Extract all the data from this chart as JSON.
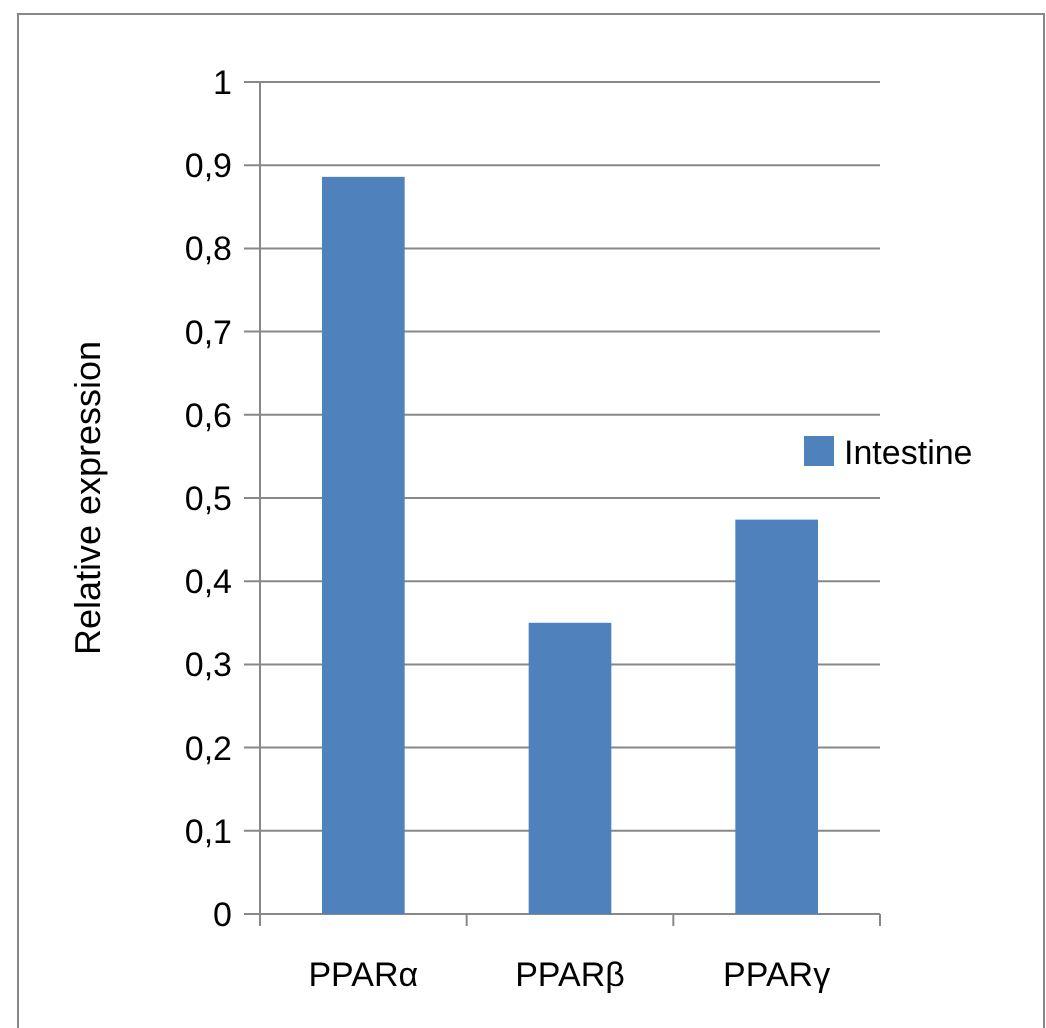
{
  "chart_data": {
    "type": "bar",
    "ylabel": "Relative expression",
    "categories": [
      "PPARα",
      "PPARβ",
      "PPARγ"
    ],
    "series": [
      {
        "name": "Intestine",
        "color": "#4f81bd",
        "values": [
          0.886,
          0.35,
          0.474
        ]
      }
    ],
    "ylim": [
      0,
      1
    ],
    "yticks": [
      0,
      {
        "value": 0.1,
        "label": "0,1"
      },
      {
        "value": 0.2,
        "label": "0,2"
      },
      {
        "value": 0.3,
        "label": "0,3"
      },
      {
        "value": 0.4,
        "label": "0,4"
      },
      {
        "value": 0.5,
        "label": "0,5"
      },
      {
        "value": 0.6,
        "label": "0,6"
      },
      {
        "value": 0.7,
        "label": "0,7"
      },
      {
        "value": 0.8,
        "label": "0,8"
      },
      {
        "value": 0.9,
        "label": "0,9"
      },
      1
    ],
    "grid": "y",
    "legend": "right"
  }
}
